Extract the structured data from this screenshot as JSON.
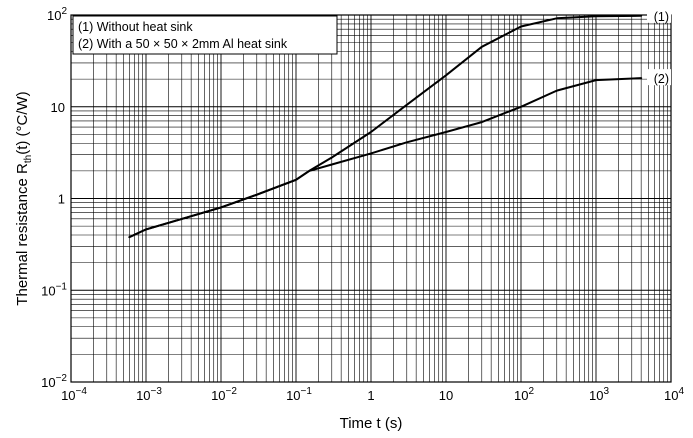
{
  "chart_data": {
    "type": "line",
    "title": "",
    "xlabel": "Time t (s)",
    "ylabel_parts": {
      "prefix": "Thermal resistance R",
      "sub": "th",
      "suffix": "(t) (°C/W)"
    },
    "x_scale": "log",
    "y_scale": "log",
    "xlim": [
      0.0001,
      10000
    ],
    "ylim": [
      0.01,
      100
    ],
    "grid": true,
    "x_ticks": [
      {
        "value": 0.0001,
        "base": "10",
        "exp": "−4"
      },
      {
        "value": 0.001,
        "base": "10",
        "exp": "−3"
      },
      {
        "value": 0.01,
        "base": "10",
        "exp": "−2"
      },
      {
        "value": 0.1,
        "base": "10",
        "exp": "−1"
      },
      {
        "value": 1,
        "base": "1",
        "exp": ""
      },
      {
        "value": 10,
        "base": "10",
        "exp": ""
      },
      {
        "value": 100,
        "base": "10",
        "exp": "2"
      },
      {
        "value": 1000,
        "base": "10",
        "exp": "3"
      },
      {
        "value": 10000,
        "base": "10",
        "exp": "4"
      }
    ],
    "y_ticks": [
      {
        "value": 0.01,
        "base": "10",
        "exp": "−2"
      },
      {
        "value": 0.1,
        "base": "10",
        "exp": "−1"
      },
      {
        "value": 1,
        "base": "1",
        "exp": ""
      },
      {
        "value": 10,
        "base": "10",
        "exp": ""
      },
      {
        "value": 100,
        "base": "10",
        "exp": "2"
      }
    ],
    "legend": {
      "placement": "top-left",
      "entries": [
        "(1) Without heat sink",
        "(2) With a 50 × 50 × 2mm Al heat sink"
      ]
    },
    "series": [
      {
        "name": "(1)",
        "x": [
          0.0006,
          0.001,
          0.003,
          0.01,
          0.03,
          0.1,
          0.15,
          0.3,
          1,
          3,
          10,
          30,
          100,
          300,
          1000,
          4000
        ],
        "y": [
          0.38,
          0.46,
          0.6,
          0.8,
          1.1,
          1.6,
          2.0,
          2.8,
          5.3,
          10.5,
          22,
          45,
          75,
          92,
          97,
          98
        ]
      },
      {
        "name": "(2)",
        "x": [
          0.0006,
          0.001,
          0.003,
          0.01,
          0.03,
          0.1,
          0.15,
          0.3,
          1,
          3,
          10,
          30,
          100,
          300,
          1000,
          4000
        ],
        "y": [
          0.38,
          0.46,
          0.6,
          0.8,
          1.1,
          1.6,
          2.0,
          2.35,
          3.1,
          4.1,
          5.3,
          6.8,
          10,
          15,
          19.5,
          20.5
        ]
      }
    ]
  }
}
